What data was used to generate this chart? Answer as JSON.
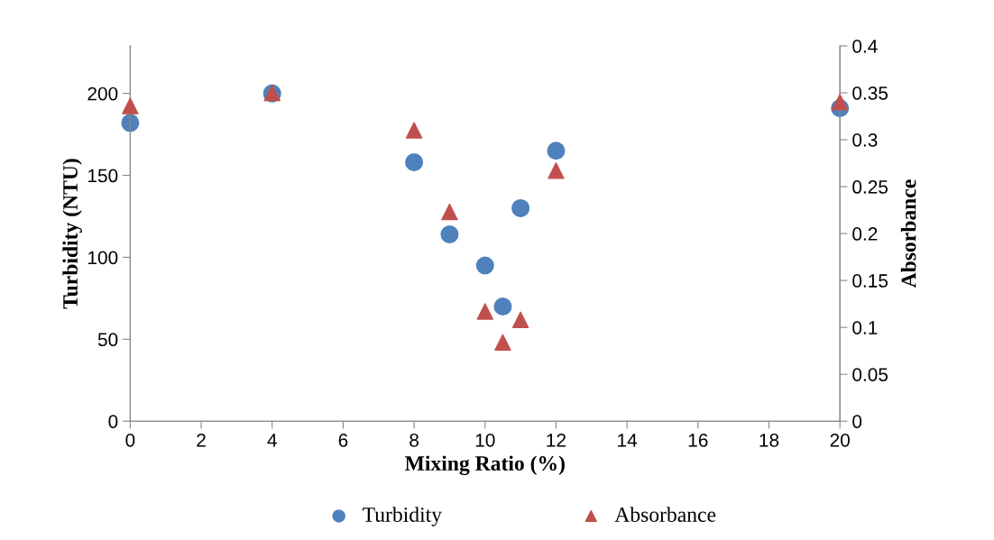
{
  "chart_data": {
    "type": "scatter",
    "xlabel": "Mixing Ratio (%)",
    "ylabel": "Turbidity (NTU)",
    "y2label": "Absorbance",
    "xlim": [
      0,
      20
    ],
    "xticks": [
      0,
      2,
      4,
      6,
      8,
      10,
      12,
      14,
      16,
      18,
      20
    ],
    "ylim": [
      0,
      229
    ],
    "yticks": [
      0,
      50,
      100,
      150,
      200
    ],
    "y2lim": [
      0,
      0.4
    ],
    "y2ticks": [
      0,
      0.05,
      0.1,
      0.15,
      0.2,
      0.25,
      0.3,
      0.35,
      0.4
    ],
    "legend": "bottom",
    "grid": false,
    "series": [
      {
        "name": "Turbidity",
        "color": "#4f81bd",
        "marker": "circle",
        "x": [
          0,
          4,
          8,
          9,
          10,
          10.5,
          11,
          12,
          20
        ],
        "values": [
          182,
          200,
          158,
          114,
          95,
          70,
          130,
          165,
          191
        ]
      },
      {
        "name": "Absorbance",
        "color": "#c0504d",
        "marker": "triangle",
        "axis": "y2",
        "x": [
          0,
          4,
          8,
          9,
          10,
          10.5,
          11,
          12,
          20
        ],
        "values": [
          0.336,
          0.35,
          0.31,
          0.223,
          0.117,
          0.084,
          0.108,
          0.267,
          0.34
        ]
      }
    ]
  }
}
